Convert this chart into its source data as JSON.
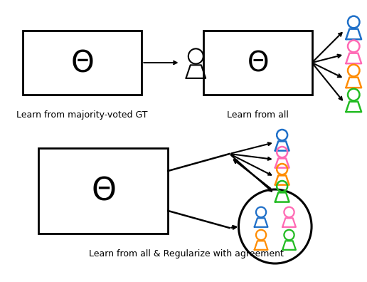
{
  "bg_color": "#ffffff",
  "annotator_colors": [
    "#1e6fc8",
    "#ff69b4",
    "#ff8c00",
    "#22bb22"
  ],
  "label1": "Learn from majority-voted GT",
  "label2": "Learn from all",
  "label3": "Learn from all & Regularize with agreement",
  "text_color": "#000000"
}
